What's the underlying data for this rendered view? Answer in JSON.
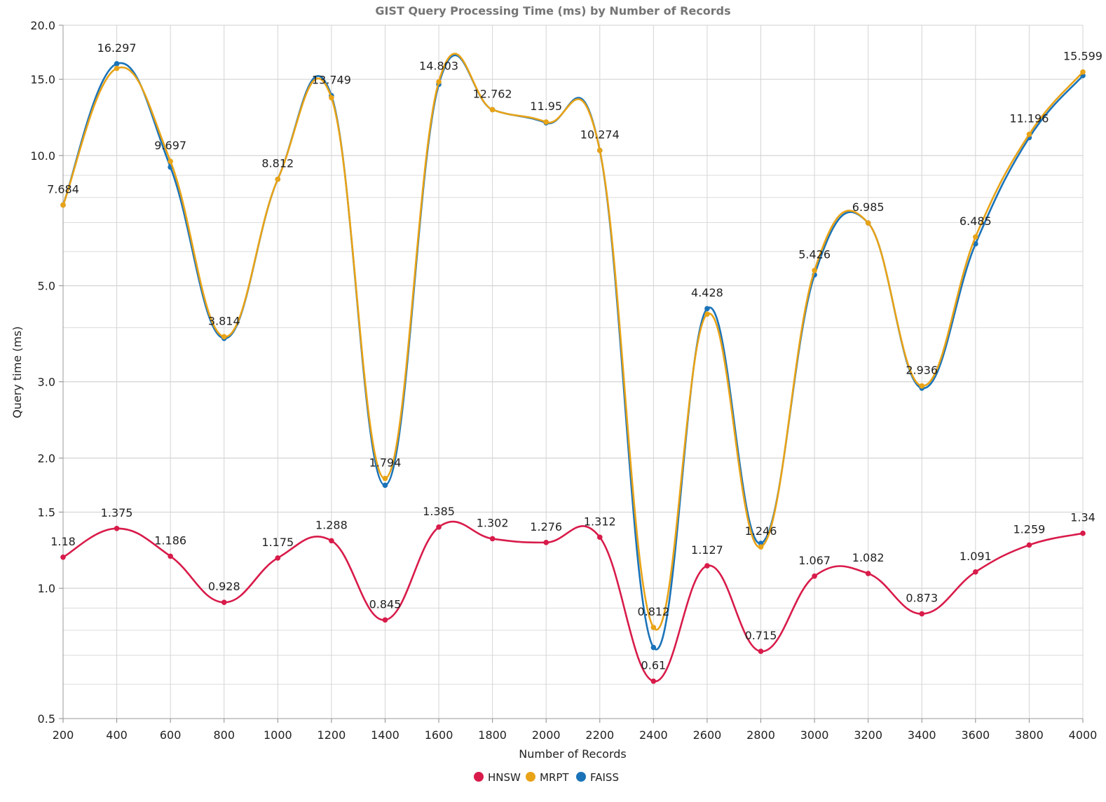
{
  "chart_data": {
    "type": "line",
    "title": "GIST Query Processing Time (ms) by Number of Records",
    "xlabel": "Number of Records",
    "ylabel": "Query time (ms)",
    "yscale": "log",
    "ylim": [
      0.5,
      20
    ],
    "y_ticks": [
      "0.5",
      "1.0",
      "1.5",
      "2.0",
      "3.0",
      "5.0",
      "10.0",
      "15.0",
      "20.0"
    ],
    "grid": true,
    "legend_position": "bottom",
    "categories": [
      "200",
      "400",
      "600",
      "800",
      "1000",
      "1200",
      "1400",
      "1600",
      "1800",
      "2000",
      "2200",
      "2400",
      "2600",
      "2800",
      "3000",
      "3200",
      "3400",
      "3600",
      "3800",
      "4000"
    ],
    "series": [
      {
        "name": "HNSW",
        "color": "#d81b4a",
        "values": [
          1.18,
          1.375,
          1.186,
          0.928,
          1.175,
          1.288,
          0.845,
          1.385,
          1.302,
          1.276,
          1.312,
          0.61,
          1.127,
          0.715,
          1.067,
          1.082,
          0.873,
          1.091,
          1.259,
          1.34
        ],
        "labels": [
          "1.18",
          "1.375",
          "1.186",
          "0.928",
          "1.175",
          "1.288",
          "0.845",
          "1.385",
          "1.302",
          "1.276",
          "1.312",
          "0.61",
          "1.127",
          "0.715",
          "1.067",
          "1.082",
          "0.873",
          "1.091",
          "1.259",
          "1.34"
        ]
      },
      {
        "name": "MRPT",
        "color": "#e8a317",
        "values": [
          7.684,
          15.9,
          9.697,
          3.814,
          8.812,
          13.6,
          1.794,
          14.803,
          12.762,
          11.95,
          10.274,
          0.812,
          4.3,
          1.246,
          5.426,
          6.985,
          2.936,
          6.485,
          11.196,
          15.599
        ],
        "labels": [
          "7.684",
          "",
          "9.697",
          "3.814",
          "8.812",
          "",
          "1.794",
          "14.803",
          "12.762",
          "11.95",
          "10.274",
          "0.812",
          "",
          "1.246",
          "5.426",
          "6.985",
          "2.936",
          "6.485",
          "11.196",
          "15.599"
        ]
      },
      {
        "name": "FAISS",
        "color": "#1a73b8",
        "values": [
          7.684,
          16.297,
          9.4,
          3.78,
          8.812,
          13.749,
          1.73,
          14.6,
          12.762,
          11.9,
          10.274,
          0.73,
          4.428,
          1.27,
          5.3,
          6.985,
          2.9,
          6.25,
          11.0,
          15.3
        ],
        "labels": [
          "",
          "16.297",
          "",
          "",
          "",
          "13.749",
          "",
          "",
          "",
          "",
          "",
          "",
          "4.428",
          "",
          "",
          "",
          "",
          "",
          "",
          ""
        ]
      }
    ]
  }
}
